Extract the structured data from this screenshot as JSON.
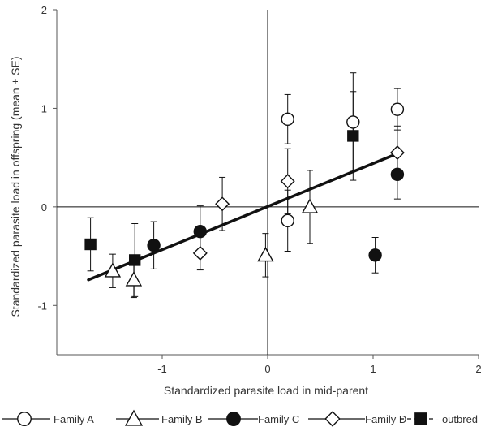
{
  "chart_data": {
    "type": "scatter",
    "title": "",
    "xlabel": "Standardized parasite load in mid-parent",
    "ylabel": "Standardized parasite load in offspring (mean ± SE)",
    "xlim": [
      -2,
      2
    ],
    "ylim": [
      -1.5,
      2
    ],
    "xticks": [
      -1,
      0,
      1,
      2
    ],
    "xtick_labels": [
      "-1",
      "0",
      "1",
      "2"
    ],
    "yticks": [
      -1,
      0,
      1,
      2
    ],
    "ytick_labels": [
      "-1",
      "0",
      "1",
      "2"
    ],
    "grid": false,
    "reference_lines": {
      "x": 0,
      "y": 0
    },
    "regression_line": {
      "x": [
        -1.7,
        1.25
      ],
      "y": [
        -0.74,
        0.55
      ]
    },
    "legend_position": "bottom",
    "series": [
      {
        "name": "Family A",
        "marker": "open-circle",
        "line": "solid",
        "points": [
          {
            "x": 0.19,
            "y": 0.89,
            "err": 0.25
          },
          {
            "x": 0.19,
            "y": -0.14,
            "err": 0.31
          },
          {
            "x": 0.81,
            "y": 0.86,
            "err": 0.5
          },
          {
            "x": 1.23,
            "y": 0.99,
            "err": 0.21
          }
        ]
      },
      {
        "name": "Family B",
        "marker": "open-triangle",
        "line": "solid",
        "points": [
          {
            "x": -1.47,
            "y": -0.65,
            "err": 0.17
          },
          {
            "x": -1.27,
            "y": -0.74,
            "err": 0.18
          },
          {
            "x": -0.02,
            "y": -0.49,
            "err": 0.22
          },
          {
            "x": 0.4,
            "y": 0.0,
            "err": 0.37
          }
        ]
      },
      {
        "name": "Family C",
        "marker": "filled-circle",
        "line": "solid",
        "points": [
          {
            "x": -1.08,
            "y": -0.39,
            "err": 0.24
          },
          {
            "x": -0.64,
            "y": -0.25,
            "err": 0.26
          },
          {
            "x": 1.02,
            "y": -0.49,
            "err": 0.18
          },
          {
            "x": 1.23,
            "y": 0.33,
            "err": 0.25
          }
        ]
      },
      {
        "name": "Family D",
        "marker": "open-diamond",
        "line": "solid",
        "points": [
          {
            "x": -0.64,
            "y": -0.47,
            "err": 0.17
          },
          {
            "x": -0.43,
            "y": 0.03,
            "err": 0.27
          },
          {
            "x": 0.19,
            "y": 0.26,
            "err": 0.33
          },
          {
            "x": 1.23,
            "y": 0.55,
            "err": 0.27
          }
        ]
      },
      {
        "name": "outbred",
        "legend_text": "- outbred",
        "marker": "filled-square",
        "line": "dashed",
        "points": [
          {
            "x": -1.68,
            "y": -0.38,
            "err": 0.27
          },
          {
            "x": -1.26,
            "y": -0.54,
            "err": 0.37
          },
          {
            "x": 0.81,
            "y": 0.72,
            "err": 0.45
          }
        ]
      }
    ]
  },
  "colors": {
    "ink": "#111111",
    "axis": "#333333",
    "background": "#ffffff"
  }
}
